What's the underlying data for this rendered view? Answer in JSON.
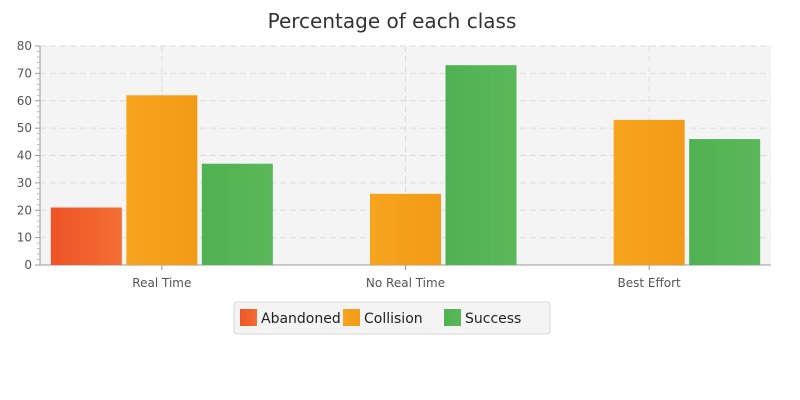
{
  "chart_data": {
    "type": "bar",
    "title": "Percentage of each class",
    "categories": [
      "Real Time",
      "No Real Time",
      "Best Effort"
    ],
    "series": [
      {
        "name": "Abandoned",
        "color": "#f05a28",
        "values": [
          21,
          0,
          0
        ]
      },
      {
        "name": "Collision",
        "color": "#f8a21b",
        "values": [
          62,
          26,
          53
        ]
      },
      {
        "name": "Success",
        "color": "#55b356",
        "values": [
          37,
          73,
          46
        ]
      }
    ],
    "xlabel": "",
    "ylabel": "",
    "ylim": [
      0,
      80
    ],
    "yticks": [
      0,
      10,
      20,
      30,
      40,
      50,
      60,
      70,
      80
    ],
    "grid": true,
    "legend_position": "bottom"
  }
}
